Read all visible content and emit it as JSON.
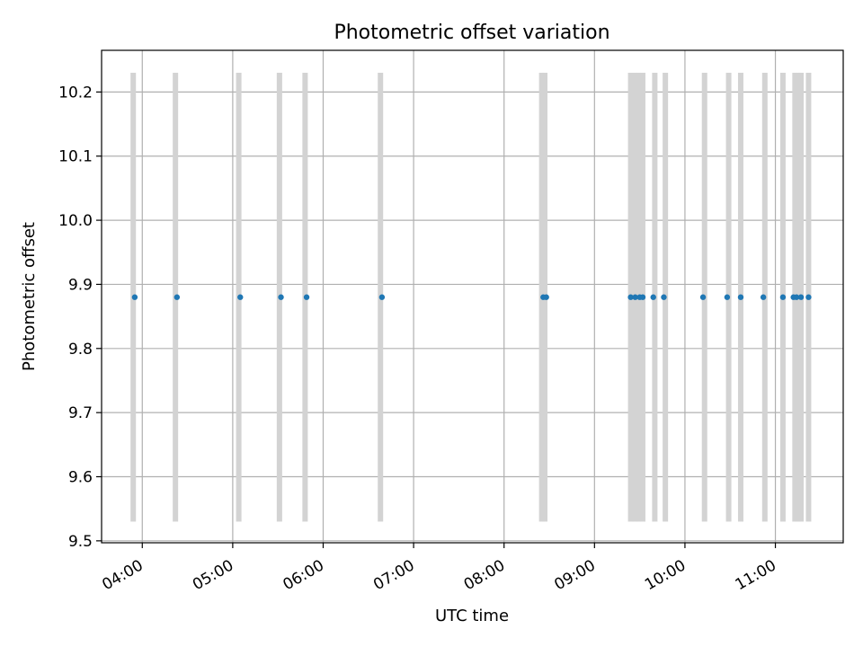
{
  "chart_data": {
    "type": "scatter",
    "title": "Photometric offset variation",
    "xlabel": "UTC time",
    "ylabel": "Photometric offset",
    "x_axis": "time",
    "xlim": [
      "03:33",
      "11:45"
    ],
    "ylim": [
      9.497,
      10.265
    ],
    "x_ticks": [
      "04:00",
      "05:00",
      "06:00",
      "07:00",
      "08:00",
      "09:00",
      "10:00",
      "11:00"
    ],
    "y_ticks": [
      "9.5",
      "9.6",
      "9.7",
      "9.8",
      "9.9",
      "10.0",
      "10.1",
      "10.2"
    ],
    "grid": true,
    "colors": {
      "points": "#1f77b4",
      "bars": "#d3d3d3",
      "grid": "#b0b0b0"
    },
    "interval_bars": {
      "y_range": [
        9.53,
        10.23
      ],
      "x": [
        "03:54",
        "04:22",
        "05:04",
        "05:31",
        "05:48",
        "06:38",
        "08:25",
        "08:27",
        "09:24",
        "09:27",
        "09:29",
        "09:32",
        "09:40",
        "09:47",
        "10:13",
        "10:29",
        "10:37",
        "10:53",
        "11:05",
        "11:13",
        "11:15",
        "11:17",
        "11:22"
      ]
    },
    "points": {
      "y": 9.88,
      "x": [
        "03:55",
        "04:23",
        "05:05",
        "05:32",
        "05:49",
        "06:39",
        "08:26",
        "08:28",
        "09:24",
        "09:27",
        "09:30",
        "09:32",
        "09:39",
        "09:46",
        "10:12",
        "10:28",
        "10:37",
        "10:52",
        "11:05",
        "11:12",
        "11:14",
        "11:17",
        "11:22"
      ]
    }
  }
}
